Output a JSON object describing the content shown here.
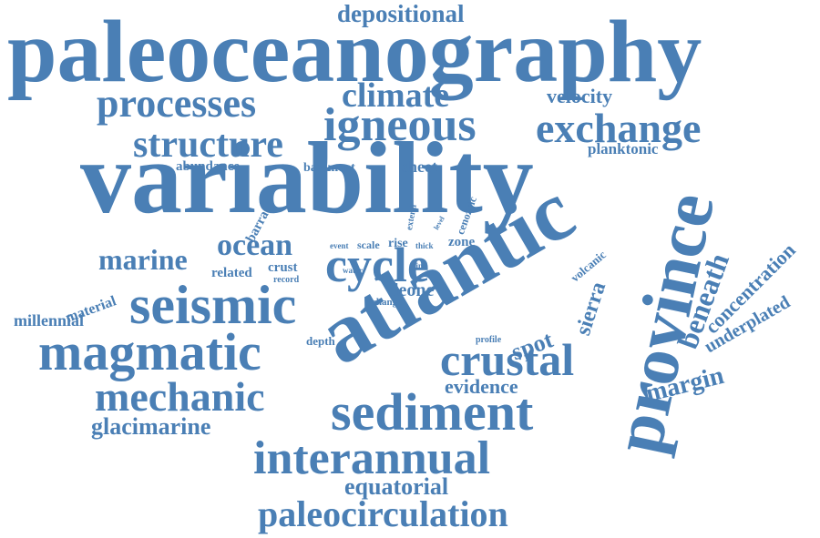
{
  "accent_color": "#4a7fb5",
  "words": [
    "paleoceanography",
    "variability",
    "atlantic",
    "province",
    "seismic",
    "magmatic",
    "igneous",
    "exchange",
    "structure",
    "processes",
    "climate",
    "cycle",
    "ocean",
    "crustal",
    "sediment",
    "interannual",
    "paleocirculation",
    "mechanic",
    "marine",
    "depositional",
    "velocity",
    "planktonic",
    "abundance",
    "basement",
    "sheet",
    "glacimarine",
    "equatorial",
    "evidence",
    "margin",
    "beneath",
    "concentration",
    "underplated",
    "sierra",
    "spot",
    "leone",
    "millennial",
    "material",
    "related",
    "crust",
    "record",
    "barra",
    "zone",
    "cenozoic",
    "extend",
    "level",
    "event",
    "scale",
    "rise",
    "thick",
    "water",
    "line",
    "volcanic",
    "change",
    "depth",
    "profile"
  ]
}
